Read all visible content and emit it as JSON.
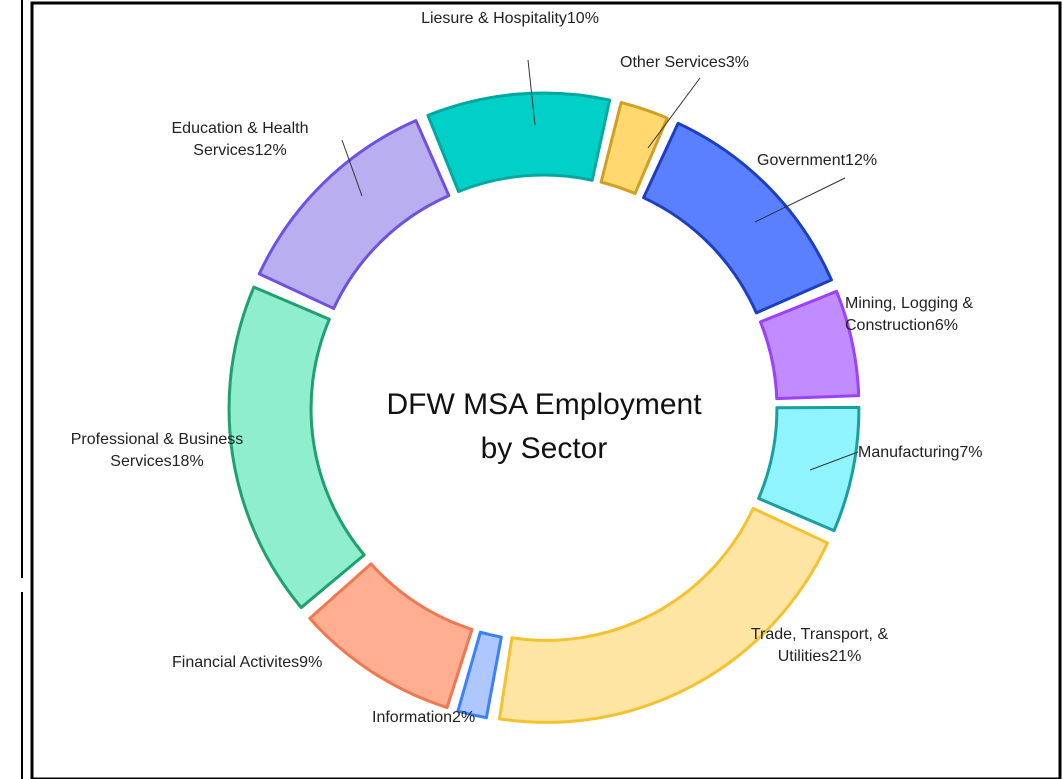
{
  "chart_data": {
    "type": "donut",
    "title": "DFW MSA Employment by Sector",
    "categories": [
      "Government",
      "Mining, Logging & Construction",
      "Manufacturing",
      "Trade, Transport, & Utilities",
      "Information",
      "Financial Activites",
      "Professional & Business Services",
      "Education & Health Services",
      "Liesure & Hospitality",
      "Other Services"
    ],
    "values": [
      12,
      6,
      7,
      21,
      2,
      9,
      18,
      12,
      10,
      3
    ],
    "value_labels": [
      "12%",
      "6%",
      "7%",
      "21%",
      "2%",
      "9%",
      "18%",
      "12%",
      "10%",
      "3%"
    ],
    "colors": [
      "#5b80ff",
      "#c08cff",
      "#90f4ff",
      "#ffe5a3",
      "#aec8ff",
      "#ffae92",
      "#8eeecd",
      "#b9aef0",
      "#00d0c8",
      "#ffd870"
    ],
    "stroke_colors": [
      "#1d3fbf",
      "#9a40ff",
      "#1a9ea0",
      "#f6c12e",
      "#3a80ff",
      "#f07850",
      "#20a070",
      "#7050e0",
      "#00a8a0",
      "#d0a020"
    ]
  }
}
